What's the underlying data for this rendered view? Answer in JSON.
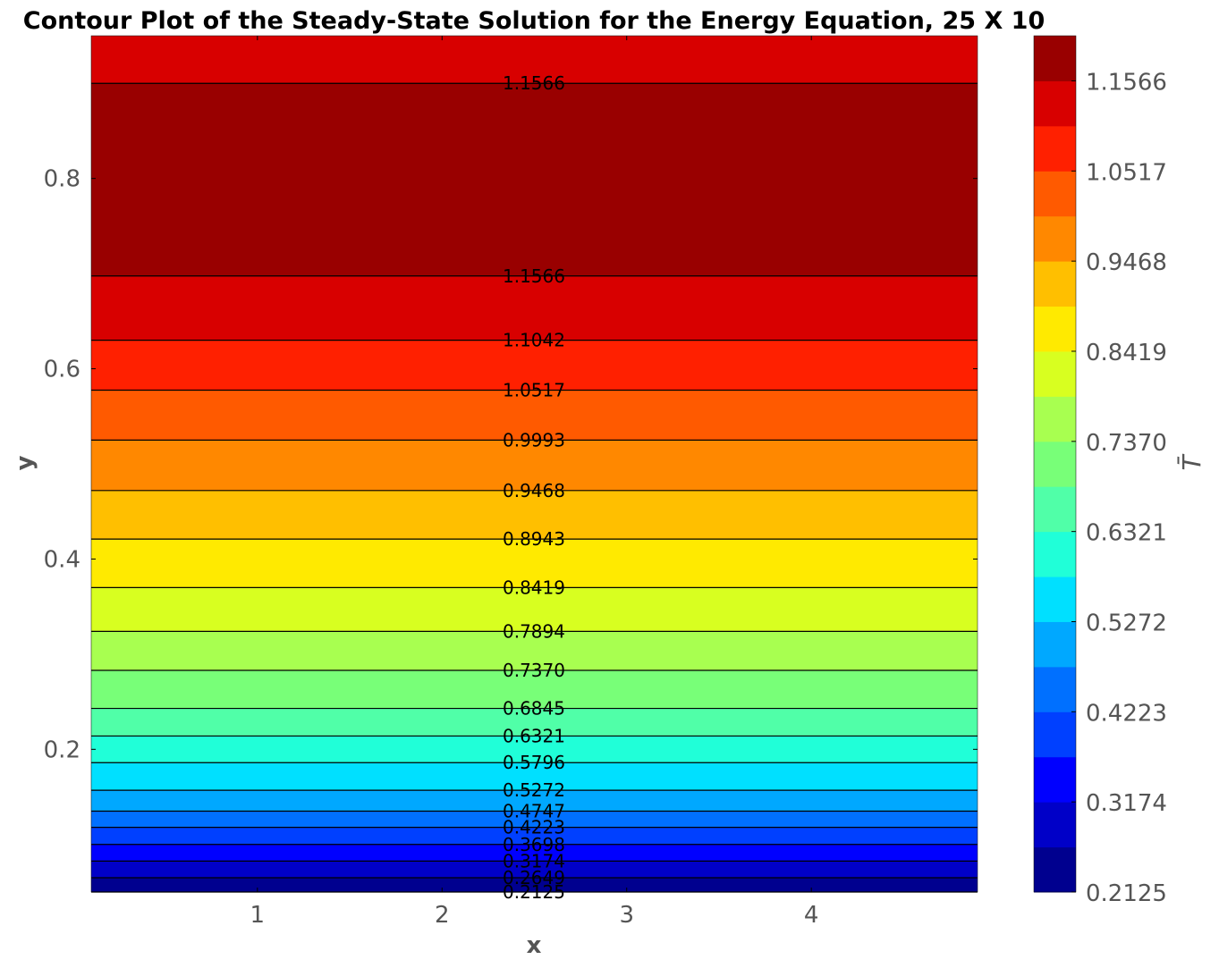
{
  "chart_data": {
    "type": "contour",
    "title": "Contour Plot of the Steady-State Solution for the Energy Equation, 25 X 10",
    "xlabel": "x",
    "ylabel": "y",
    "xlim": [
      0.1,
      4.9
    ],
    "ylim": [
      0.05,
      0.95
    ],
    "xticks": [
      "1",
      "2",
      "3",
      "4"
    ],
    "yticks": [
      "0.2",
      "0.4",
      "0.6",
      "0.8"
    ],
    "colorbar": {
      "label": "T̄",
      "range": [
        0.2125,
        1.2091
      ],
      "ticks": [
        "0.2125",
        "0.3174",
        "0.4223",
        "0.5272",
        "0.6321",
        "0.7370",
        "0.8419",
        "0.9468",
        "1.0517",
        "1.1566"
      ],
      "colormap": "jet",
      "colors": [
        "#00008f",
        "#0000c8",
        "#0000ff",
        "#0040ff",
        "#0070ff",
        "#00a8ff",
        "#00e0ff",
        "#20ffd8",
        "#50ffa8",
        "#78ff78",
        "#a8ff50",
        "#d8ff20",
        "#ffea00",
        "#ffbf00",
        "#ff8800",
        "#ff5a00",
        "#ff2000",
        "#d80000",
        "#990000"
      ]
    },
    "contour_levels": [
      {
        "y": 0.9,
        "label": "1.1566"
      },
      {
        "y": 0.6975,
        "label": "1.1566"
      },
      {
        "y": 0.63,
        "label": "1.1042"
      },
      {
        "y": 0.5775,
        "label": "1.0517"
      },
      {
        "y": 0.525,
        "label": "0.9993"
      },
      {
        "y": 0.472,
        "label": "0.9468"
      },
      {
        "y": 0.421,
        "label": "0.8943"
      },
      {
        "y": 0.37,
        "label": "0.8419"
      },
      {
        "y": 0.324,
        "label": "0.7894"
      },
      {
        "y": 0.283,
        "label": "0.7370"
      },
      {
        "y": 0.243,
        "label": "0.6845"
      },
      {
        "y": 0.214,
        "label": "0.6321"
      },
      {
        "y": 0.186,
        "label": "0.5796"
      },
      {
        "y": 0.157,
        "label": "0.5272"
      },
      {
        "y": 0.135,
        "label": "0.4747"
      },
      {
        "y": 0.118,
        "label": "0.4223"
      },
      {
        "y": 0.1,
        "label": "0.3698"
      },
      {
        "y": 0.0825,
        "label": "0.3174"
      },
      {
        "y": 0.065,
        "label": "0.2649"
      },
      {
        "y": 0.05,
        "label": "0.2125"
      }
    ],
    "bands": [
      {
        "y0": 0.9,
        "y1": 0.95,
        "color": "#d80000"
      },
      {
        "y0": 0.6975,
        "y1": 0.9,
        "color": "#990000"
      },
      {
        "y0": 0.63,
        "y1": 0.6975,
        "color": "#d80000"
      },
      {
        "y0": 0.5775,
        "y1": 0.63,
        "color": "#ff2000"
      },
      {
        "y0": 0.525,
        "y1": 0.5775,
        "color": "#ff5a00"
      },
      {
        "y0": 0.472,
        "y1": 0.525,
        "color": "#ff8800"
      },
      {
        "y0": 0.421,
        "y1": 0.472,
        "color": "#ffbf00"
      },
      {
        "y0": 0.37,
        "y1": 0.421,
        "color": "#ffea00"
      },
      {
        "y0": 0.324,
        "y1": 0.37,
        "color": "#d8ff20"
      },
      {
        "y0": 0.283,
        "y1": 0.324,
        "color": "#a8ff50"
      },
      {
        "y0": 0.243,
        "y1": 0.283,
        "color": "#78ff78"
      },
      {
        "y0": 0.214,
        "y1": 0.243,
        "color": "#50ffa8"
      },
      {
        "y0": 0.186,
        "y1": 0.214,
        "color": "#20ffd8"
      },
      {
        "y0": 0.157,
        "y1": 0.186,
        "color": "#00e0ff"
      },
      {
        "y0": 0.135,
        "y1": 0.157,
        "color": "#00a8ff"
      },
      {
        "y0": 0.118,
        "y1": 0.135,
        "color": "#0070ff"
      },
      {
        "y0": 0.1,
        "y1": 0.118,
        "color": "#0040ff"
      },
      {
        "y0": 0.0825,
        "y1": 0.1,
        "color": "#0000ff"
      },
      {
        "y0": 0.065,
        "y1": 0.0825,
        "color": "#0000c8"
      },
      {
        "y0": 0.05,
        "y1": 0.065,
        "color": "#00008f"
      }
    ],
    "grid": false
  }
}
